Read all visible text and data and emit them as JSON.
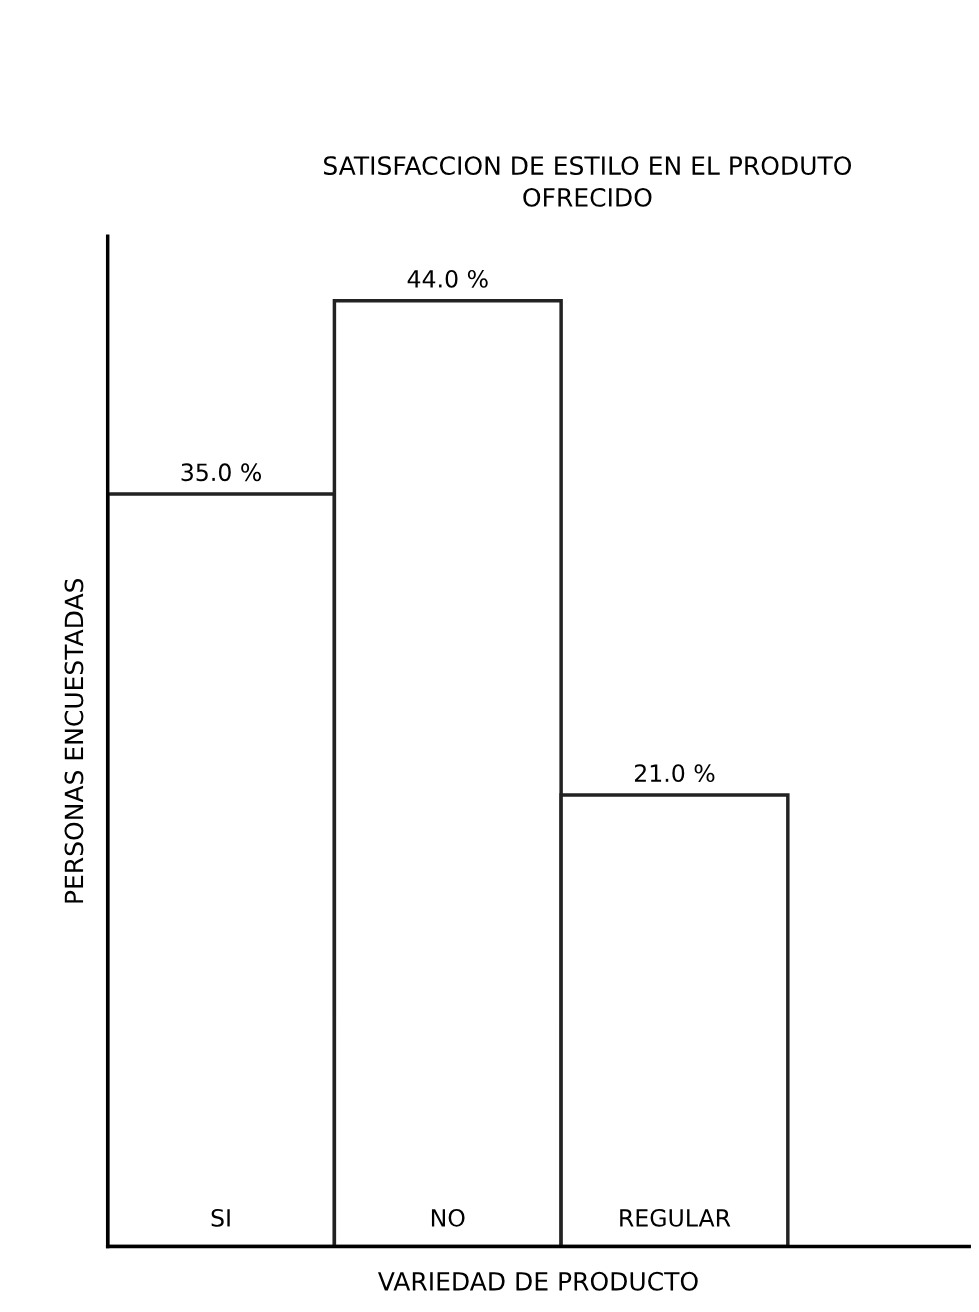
{
  "chart_data": {
    "type": "bar",
    "title": "SATISFACCION DE ESTILO EN EL PRODUTO\nOFRECIDO",
    "xlabel": "VARIEDAD DE PRODUCTO",
    "ylabel": "PERSONAS ENCUESTADAS",
    "categories": [
      "SI",
      "NO",
      "REGULAR"
    ],
    "values": [
      35.0,
      44.0,
      21.0
    ],
    "value_labels": [
      "35.0 %",
      "44.0 %",
      "21.0 %"
    ],
    "color": "#ffffff",
    "ylim": [
      0,
      47
    ],
    "tick_labels": "x",
    "legend": false
  }
}
